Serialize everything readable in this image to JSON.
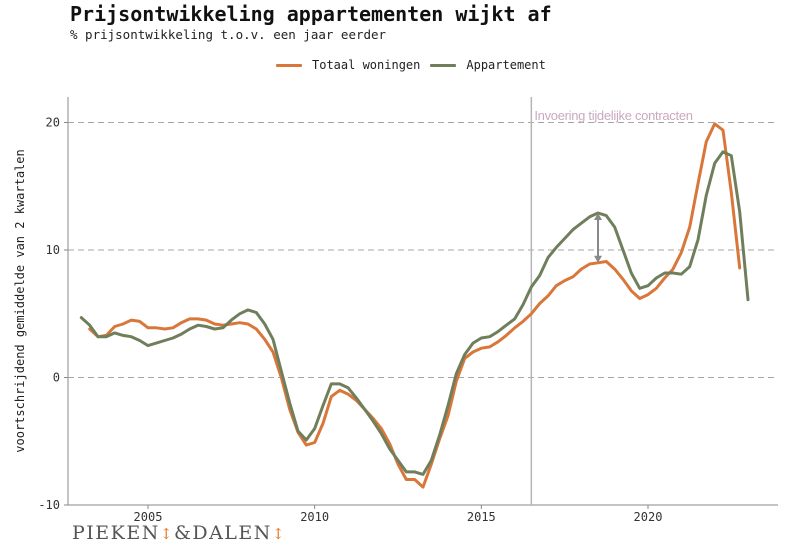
{
  "header": {
    "title": "Prijsontwikkeling appartementen wijkt af",
    "subtitle": "% prijsontwikkeling t.o.v. een jaar eerder"
  },
  "logo": {
    "left": "PIEKE",
    "n1": "N",
    "mid": "&DALE",
    "n2": "N",
    "arrow_icon": "up-down-arrow-icon"
  },
  "chart_data": {
    "type": "line",
    "ylabel": "voortschrijdend gemiddelde van 2 kwartalen",
    "xlabel": "",
    "xlim": [
      2002.6,
      2023.9
    ],
    "ylim": [
      -10,
      22
    ],
    "xticks": [
      2005,
      2010,
      2015,
      2020
    ],
    "yticks": [
      -10,
      0,
      10,
      20
    ],
    "grid": "horizontal dashed",
    "legend_position": "top",
    "annotation": {
      "label": "Invoering tijdelijke contracten",
      "x": 2016.5,
      "color": "#c9a9bf"
    },
    "gap_arrow": {
      "x": 2018.5,
      "y_from": 9.0,
      "y_to": 12.9,
      "color": "#888888"
    },
    "series": [
      {
        "name": "Totaal woningen",
        "color": "#d9773a",
        "points": [
          [
            2003.25,
            3.8
          ],
          [
            2003.5,
            3.2
          ],
          [
            2003.75,
            3.3
          ],
          [
            2004.0,
            4.0
          ],
          [
            2004.25,
            4.2
          ],
          [
            2004.5,
            4.5
          ],
          [
            2004.75,
            4.4
          ],
          [
            2005.0,
            3.9
          ],
          [
            2005.25,
            3.9
          ],
          [
            2005.5,
            3.8
          ],
          [
            2005.75,
            3.9
          ],
          [
            2006.0,
            4.3
          ],
          [
            2006.25,
            4.6
          ],
          [
            2006.5,
            4.6
          ],
          [
            2006.75,
            4.5
          ],
          [
            2007.0,
            4.2
          ],
          [
            2007.25,
            4.1
          ],
          [
            2007.5,
            4.2
          ],
          [
            2007.75,
            4.3
          ],
          [
            2008.0,
            4.2
          ],
          [
            2008.25,
            3.8
          ],
          [
            2008.5,
            3.0
          ],
          [
            2008.75,
            2.0
          ],
          [
            2009.0,
            0.0
          ],
          [
            2009.25,
            -2.5
          ],
          [
            2009.5,
            -4.3
          ],
          [
            2009.75,
            -5.3
          ],
          [
            2010.0,
            -5.1
          ],
          [
            2010.25,
            -3.6
          ],
          [
            2010.5,
            -1.5
          ],
          [
            2010.75,
            -1.0
          ],
          [
            2011.0,
            -1.3
          ],
          [
            2011.25,
            -1.8
          ],
          [
            2011.5,
            -2.5
          ],
          [
            2011.75,
            -3.2
          ],
          [
            2012.0,
            -4.0
          ],
          [
            2012.25,
            -5.2
          ],
          [
            2012.5,
            -6.8
          ],
          [
            2012.75,
            -8.0
          ],
          [
            2013.0,
            -8.0
          ],
          [
            2013.25,
            -8.6
          ],
          [
            2013.5,
            -6.8
          ],
          [
            2013.75,
            -4.8
          ],
          [
            2014.0,
            -3.0
          ],
          [
            2014.25,
            -0.3
          ],
          [
            2014.5,
            1.5
          ],
          [
            2014.75,
            2.0
          ],
          [
            2015.0,
            2.3
          ],
          [
            2015.25,
            2.4
          ],
          [
            2015.5,
            2.8
          ],
          [
            2015.75,
            3.3
          ],
          [
            2016.0,
            3.9
          ],
          [
            2016.25,
            4.4
          ],
          [
            2016.5,
            5.0
          ],
          [
            2016.75,
            5.8
          ],
          [
            2017.0,
            6.4
          ],
          [
            2017.25,
            7.2
          ],
          [
            2017.5,
            7.6
          ],
          [
            2017.75,
            7.9
          ],
          [
            2018.0,
            8.5
          ],
          [
            2018.25,
            8.9
          ],
          [
            2018.5,
            9.0
          ],
          [
            2018.75,
            9.1
          ],
          [
            2019.0,
            8.5
          ],
          [
            2019.25,
            7.7
          ],
          [
            2019.5,
            6.8
          ],
          [
            2019.75,
            6.2
          ],
          [
            2020.0,
            6.5
          ],
          [
            2020.25,
            7.0
          ],
          [
            2020.5,
            7.8
          ],
          [
            2020.75,
            8.5
          ],
          [
            2021.0,
            9.8
          ],
          [
            2021.25,
            11.8
          ],
          [
            2021.5,
            15.2
          ],
          [
            2021.75,
            18.5
          ],
          [
            2022.0,
            19.9
          ],
          [
            2022.25,
            19.4
          ],
          [
            2022.5,
            14.5
          ],
          [
            2022.75,
            8.6
          ]
        ]
      },
      {
        "name": "Appartement",
        "color": "#6f7f5c",
        "points": [
          [
            2003.0,
            4.7
          ],
          [
            2003.25,
            4.1
          ],
          [
            2003.5,
            3.2
          ],
          [
            2003.75,
            3.2
          ],
          [
            2004.0,
            3.5
          ],
          [
            2004.25,
            3.3
          ],
          [
            2004.5,
            3.2
          ],
          [
            2004.75,
            2.9
          ],
          [
            2005.0,
            2.5
          ],
          [
            2005.25,
            2.7
          ],
          [
            2005.5,
            2.9
          ],
          [
            2005.75,
            3.1
          ],
          [
            2006.0,
            3.4
          ],
          [
            2006.25,
            3.8
          ],
          [
            2006.5,
            4.1
          ],
          [
            2006.75,
            4.0
          ],
          [
            2007.0,
            3.8
          ],
          [
            2007.25,
            3.9
          ],
          [
            2007.5,
            4.5
          ],
          [
            2007.75,
            5.0
          ],
          [
            2008.0,
            5.3
          ],
          [
            2008.25,
            5.1
          ],
          [
            2008.5,
            4.2
          ],
          [
            2008.75,
            3.0
          ],
          [
            2009.0,
            0.5
          ],
          [
            2009.25,
            -2.0
          ],
          [
            2009.5,
            -4.2
          ],
          [
            2009.75,
            -4.9
          ],
          [
            2010.0,
            -4.0
          ],
          [
            2010.25,
            -2.2
          ],
          [
            2010.5,
            -0.5
          ],
          [
            2010.75,
            -0.5
          ],
          [
            2011.0,
            -0.8
          ],
          [
            2011.25,
            -1.6
          ],
          [
            2011.5,
            -2.5
          ],
          [
            2011.75,
            -3.4
          ],
          [
            2012.0,
            -4.4
          ],
          [
            2012.25,
            -5.6
          ],
          [
            2012.5,
            -6.5
          ],
          [
            2012.75,
            -7.4
          ],
          [
            2013.0,
            -7.4
          ],
          [
            2013.25,
            -7.6
          ],
          [
            2013.5,
            -6.5
          ],
          [
            2013.75,
            -4.5
          ],
          [
            2014.0,
            -2.2
          ],
          [
            2014.25,
            0.3
          ],
          [
            2014.5,
            1.8
          ],
          [
            2014.75,
            2.7
          ],
          [
            2015.0,
            3.1
          ],
          [
            2015.25,
            3.2
          ],
          [
            2015.5,
            3.6
          ],
          [
            2015.75,
            4.1
          ],
          [
            2016.0,
            4.6
          ],
          [
            2016.25,
            5.7
          ],
          [
            2016.5,
            7.1
          ],
          [
            2016.75,
            8.0
          ],
          [
            2017.0,
            9.4
          ],
          [
            2017.25,
            10.2
          ],
          [
            2017.5,
            10.9
          ],
          [
            2017.75,
            11.6
          ],
          [
            2018.0,
            12.1
          ],
          [
            2018.25,
            12.6
          ],
          [
            2018.5,
            12.9
          ],
          [
            2018.75,
            12.7
          ],
          [
            2019.0,
            11.8
          ],
          [
            2019.25,
            10.0
          ],
          [
            2019.5,
            8.2
          ],
          [
            2019.75,
            7.0
          ],
          [
            2020.0,
            7.2
          ],
          [
            2020.25,
            7.8
          ],
          [
            2020.5,
            8.2
          ],
          [
            2020.75,
            8.2
          ],
          [
            2021.0,
            8.1
          ],
          [
            2021.25,
            8.7
          ],
          [
            2021.5,
            10.8
          ],
          [
            2021.75,
            14.3
          ],
          [
            2022.0,
            16.8
          ],
          [
            2022.25,
            17.7
          ],
          [
            2022.5,
            17.4
          ],
          [
            2022.75,
            13.0
          ],
          [
            2023.0,
            6.1
          ]
        ]
      }
    ]
  }
}
